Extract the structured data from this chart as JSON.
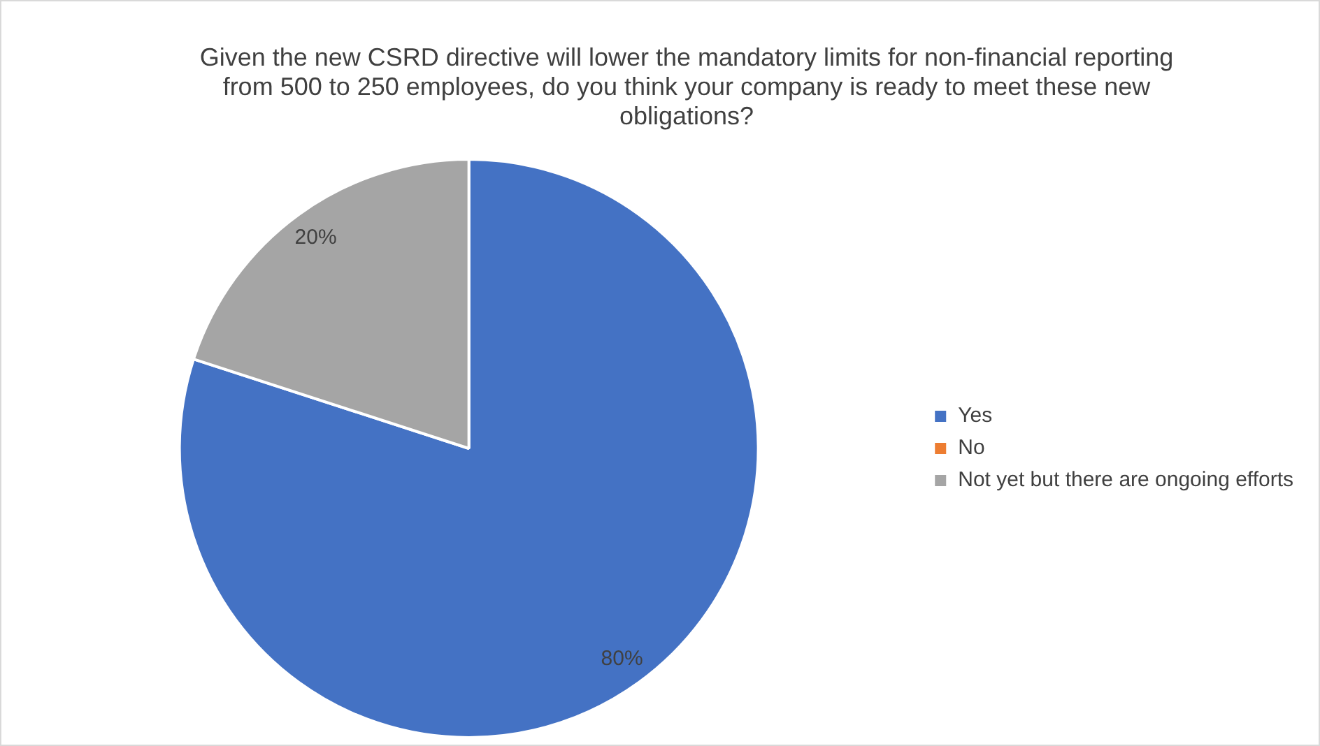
{
  "chart_data": {
    "type": "pie",
    "title": "Given the new CSRD directive will lower the mandatory limits for non-financial reporting from 500 to 250 employees, do you think your company is ready to meet these new obligations?",
    "categories": [
      "Yes",
      "No",
      "Not yet but there are ongoing efforts"
    ],
    "values": [
      80,
      0,
      20
    ],
    "colors": [
      "#4472c4",
      "#ed7d31",
      "#a5a5a5"
    ],
    "value_labels": [
      "80%",
      null,
      "20%"
    ],
    "legend": "right"
  }
}
